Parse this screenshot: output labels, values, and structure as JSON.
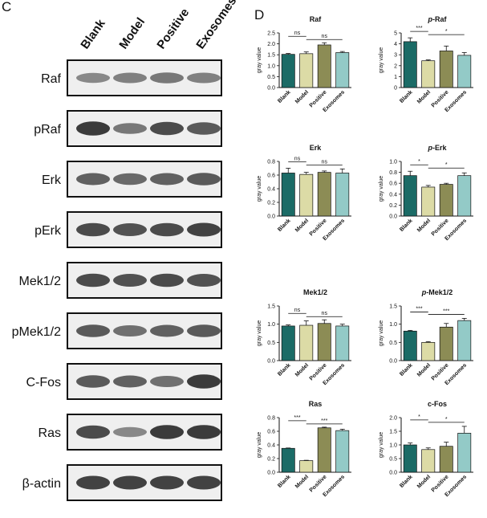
{
  "panels": {
    "left_letter": "C",
    "right_letter": "D"
  },
  "blot": {
    "lanes": [
      "Blank",
      "Model",
      "Positive",
      "Exosomes"
    ],
    "rows": [
      {
        "label": "Raf",
        "intensity": [
          0.45,
          0.5,
          0.55,
          0.5
        ]
      },
      {
        "label": "pRaf",
        "intensity": [
          0.95,
          0.55,
          0.85,
          0.75
        ]
      },
      {
        "label": "Erk",
        "intensity": [
          0.7,
          0.65,
          0.7,
          0.75
        ]
      },
      {
        "label": "pErk",
        "intensity": [
          0.85,
          0.8,
          0.85,
          0.9
        ]
      },
      {
        "label": "Mek1/2",
        "intensity": [
          0.85,
          0.8,
          0.85,
          0.8
        ]
      },
      {
        "label": "pMek1/2",
        "intensity": [
          0.75,
          0.6,
          0.7,
          0.75
        ]
      },
      {
        "label": "C-Fos",
        "intensity": [
          0.75,
          0.7,
          0.6,
          0.95
        ]
      },
      {
        "label": "Ras",
        "intensity": [
          0.85,
          0.45,
          0.95,
          0.95
        ]
      },
      {
        "label": "β-actin",
        "intensity": [
          0.9,
          0.9,
          0.9,
          0.9
        ]
      }
    ]
  },
  "colors": {
    "Blank": "#1b6b66",
    "Model": "#dcdba6",
    "Positive": "#8c8c55",
    "Exosomes": "#93cac7"
  },
  "chart_data": [
    {
      "type": "bar",
      "title": "Raf",
      "title_prefix": "",
      "ylabel": "gray value",
      "categories": [
        "Blank",
        "Model",
        "Positive",
        "Exosomes"
      ],
      "values": [
        1.52,
        1.55,
        1.95,
        1.6
      ],
      "errors": [
        0.04,
        0.08,
        0.1,
        0.05
      ],
      "ylim": [
        0,
        2.5
      ],
      "yticks": [
        0.0,
        0.5,
        1.0,
        1.5,
        2.0,
        2.5
      ],
      "significance": [
        {
          "from": 0,
          "to": 1,
          "label": "ns"
        },
        {
          "from": 1,
          "to": 3,
          "label": "ns"
        }
      ]
    },
    {
      "type": "bar",
      "title": "-Raf",
      "title_prefix": "p",
      "ylabel": "gray value",
      "categories": [
        "Blank",
        "Model",
        "Positive",
        "Exosomes"
      ],
      "values": [
        4.2,
        2.45,
        3.35,
        2.95
      ],
      "errors": [
        0.35,
        0.08,
        0.45,
        0.25
      ],
      "ylim": [
        0,
        5
      ],
      "yticks": [
        0,
        1,
        2,
        3,
        4,
        5
      ],
      "significance": [
        {
          "from": 0,
          "to": 1,
          "label": "***"
        },
        {
          "from": 1,
          "to": 3,
          "label": "*"
        }
      ]
    },
    {
      "type": "bar",
      "title": "Erk",
      "title_prefix": "",
      "ylabel": "gray value",
      "categories": [
        "Blank",
        "Model",
        "Positive",
        "Exosomes"
      ],
      "values": [
        0.63,
        0.61,
        0.64,
        0.63
      ],
      "errors": [
        0.07,
        0.03,
        0.02,
        0.06
      ],
      "ylim": [
        0,
        0.8
      ],
      "yticks": [
        0.0,
        0.2,
        0.4,
        0.6,
        0.8
      ],
      "significance": [
        {
          "from": 0,
          "to": 1,
          "label": "ns"
        },
        {
          "from": 1,
          "to": 3,
          "label": "ns"
        }
      ]
    },
    {
      "type": "bar",
      "title": "-Erk",
      "title_prefix": "p",
      "ylabel": "gray value",
      "categories": [
        "Blank",
        "Model",
        "Positive",
        "Exosomes"
      ],
      "values": [
        0.74,
        0.53,
        0.58,
        0.74
      ],
      "errors": [
        0.08,
        0.03,
        0.02,
        0.05
      ],
      "ylim": [
        0,
        1.0
      ],
      "yticks": [
        0.0,
        0.2,
        0.4,
        0.6,
        0.8,
        1.0
      ],
      "significance": [
        {
          "from": 0,
          "to": 1,
          "label": "*"
        },
        {
          "from": 1,
          "to": 3,
          "label": "*"
        }
      ]
    },
    {
      "type": "bar",
      "title": "Mek1/2",
      "title_prefix": "",
      "ylabel": "gray value",
      "categories": [
        "Blank",
        "Model",
        "Positive",
        "Exosomes"
      ],
      "values": [
        0.95,
        0.97,
        1.02,
        0.95
      ],
      "errors": [
        0.03,
        0.12,
        0.1,
        0.05
      ],
      "ylim": [
        0,
        1.5
      ],
      "yticks": [
        0.0,
        0.5,
        1.0,
        1.5
      ],
      "significance": [
        {
          "from": 0,
          "to": 1,
          "label": "ns"
        },
        {
          "from": 1,
          "to": 3,
          "label": "ns"
        }
      ]
    },
    {
      "type": "bar",
      "title": "-Mek1/2",
      "title_prefix": "p",
      "ylabel": "gray value",
      "categories": [
        "Blank",
        "Model",
        "Positive",
        "Exosomes"
      ],
      "values": [
        0.81,
        0.5,
        0.92,
        1.1
      ],
      "errors": [
        0.02,
        0.02,
        0.1,
        0.06
      ],
      "ylim": [
        0,
        1.5
      ],
      "yticks": [
        0.0,
        0.5,
        1.0,
        1.5
      ],
      "significance": [
        {
          "from": 0,
          "to": 1,
          "label": "***"
        },
        {
          "from": 1,
          "to": 3,
          "label": "***"
        }
      ]
    },
    {
      "type": "bar",
      "title": "Ras",
      "title_prefix": "",
      "ylabel": "gray value",
      "categories": [
        "Blank",
        "Model",
        "Positive",
        "Exosomes"
      ],
      "values": [
        0.35,
        0.17,
        0.65,
        0.61
      ],
      "errors": [
        0.005,
        0.005,
        0.01,
        0.02
      ],
      "ylim": [
        0,
        0.8
      ],
      "yticks": [
        0.0,
        0.2,
        0.4,
        0.6,
        0.8
      ],
      "significance": [
        {
          "from": 0,
          "to": 1,
          "label": "***"
        },
        {
          "from": 1,
          "to": 3,
          "label": "***"
        }
      ]
    },
    {
      "type": "bar",
      "title": "c-Fos",
      "title_prefix": "",
      "ylabel": "gray value",
      "categories": [
        "Blank",
        "Model",
        "Positive",
        "Exosomes"
      ],
      "values": [
        1.0,
        0.83,
        0.95,
        1.43
      ],
      "errors": [
        0.07,
        0.06,
        0.15,
        0.25
      ],
      "ylim": [
        0,
        2.0
      ],
      "yticks": [
        0.0,
        0.5,
        1.0,
        1.5,
        2.0
      ],
      "significance": [
        {
          "from": 0,
          "to": 1,
          "label": "*"
        },
        {
          "from": 1,
          "to": 3,
          "label": "*"
        }
      ]
    }
  ]
}
